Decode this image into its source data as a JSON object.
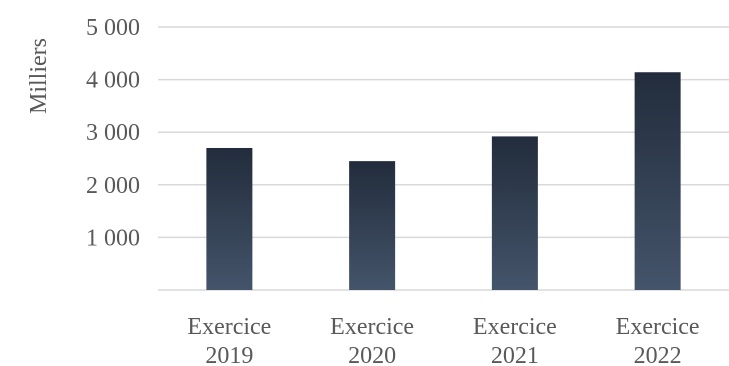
{
  "chart_data": {
    "type": "bar",
    "ylabel": "Milliers",
    "categories": [
      [
        "Exercice",
        "2019"
      ],
      [
        "Exercice",
        "2020"
      ],
      [
        "Exercice",
        "2021"
      ],
      [
        "Exercice",
        "2022"
      ]
    ],
    "values": [
      2700,
      2450,
      2920,
      4140
    ],
    "ylim": [
      0,
      5000
    ],
    "yticks": [
      {
        "value": 1000,
        "label": "1 000"
      },
      {
        "value": 2000,
        "label": "2 000"
      },
      {
        "value": 3000,
        "label": "3 000"
      },
      {
        "value": 4000,
        "label": "4 000"
      },
      {
        "value": 5000,
        "label": "5 000"
      }
    ],
    "grid": true,
    "legend": "none",
    "colors": {
      "bar_top": "#222c3c",
      "bar_bottom": "#44546a",
      "grid": "#d9d9d9",
      "text": "#595959"
    }
  }
}
